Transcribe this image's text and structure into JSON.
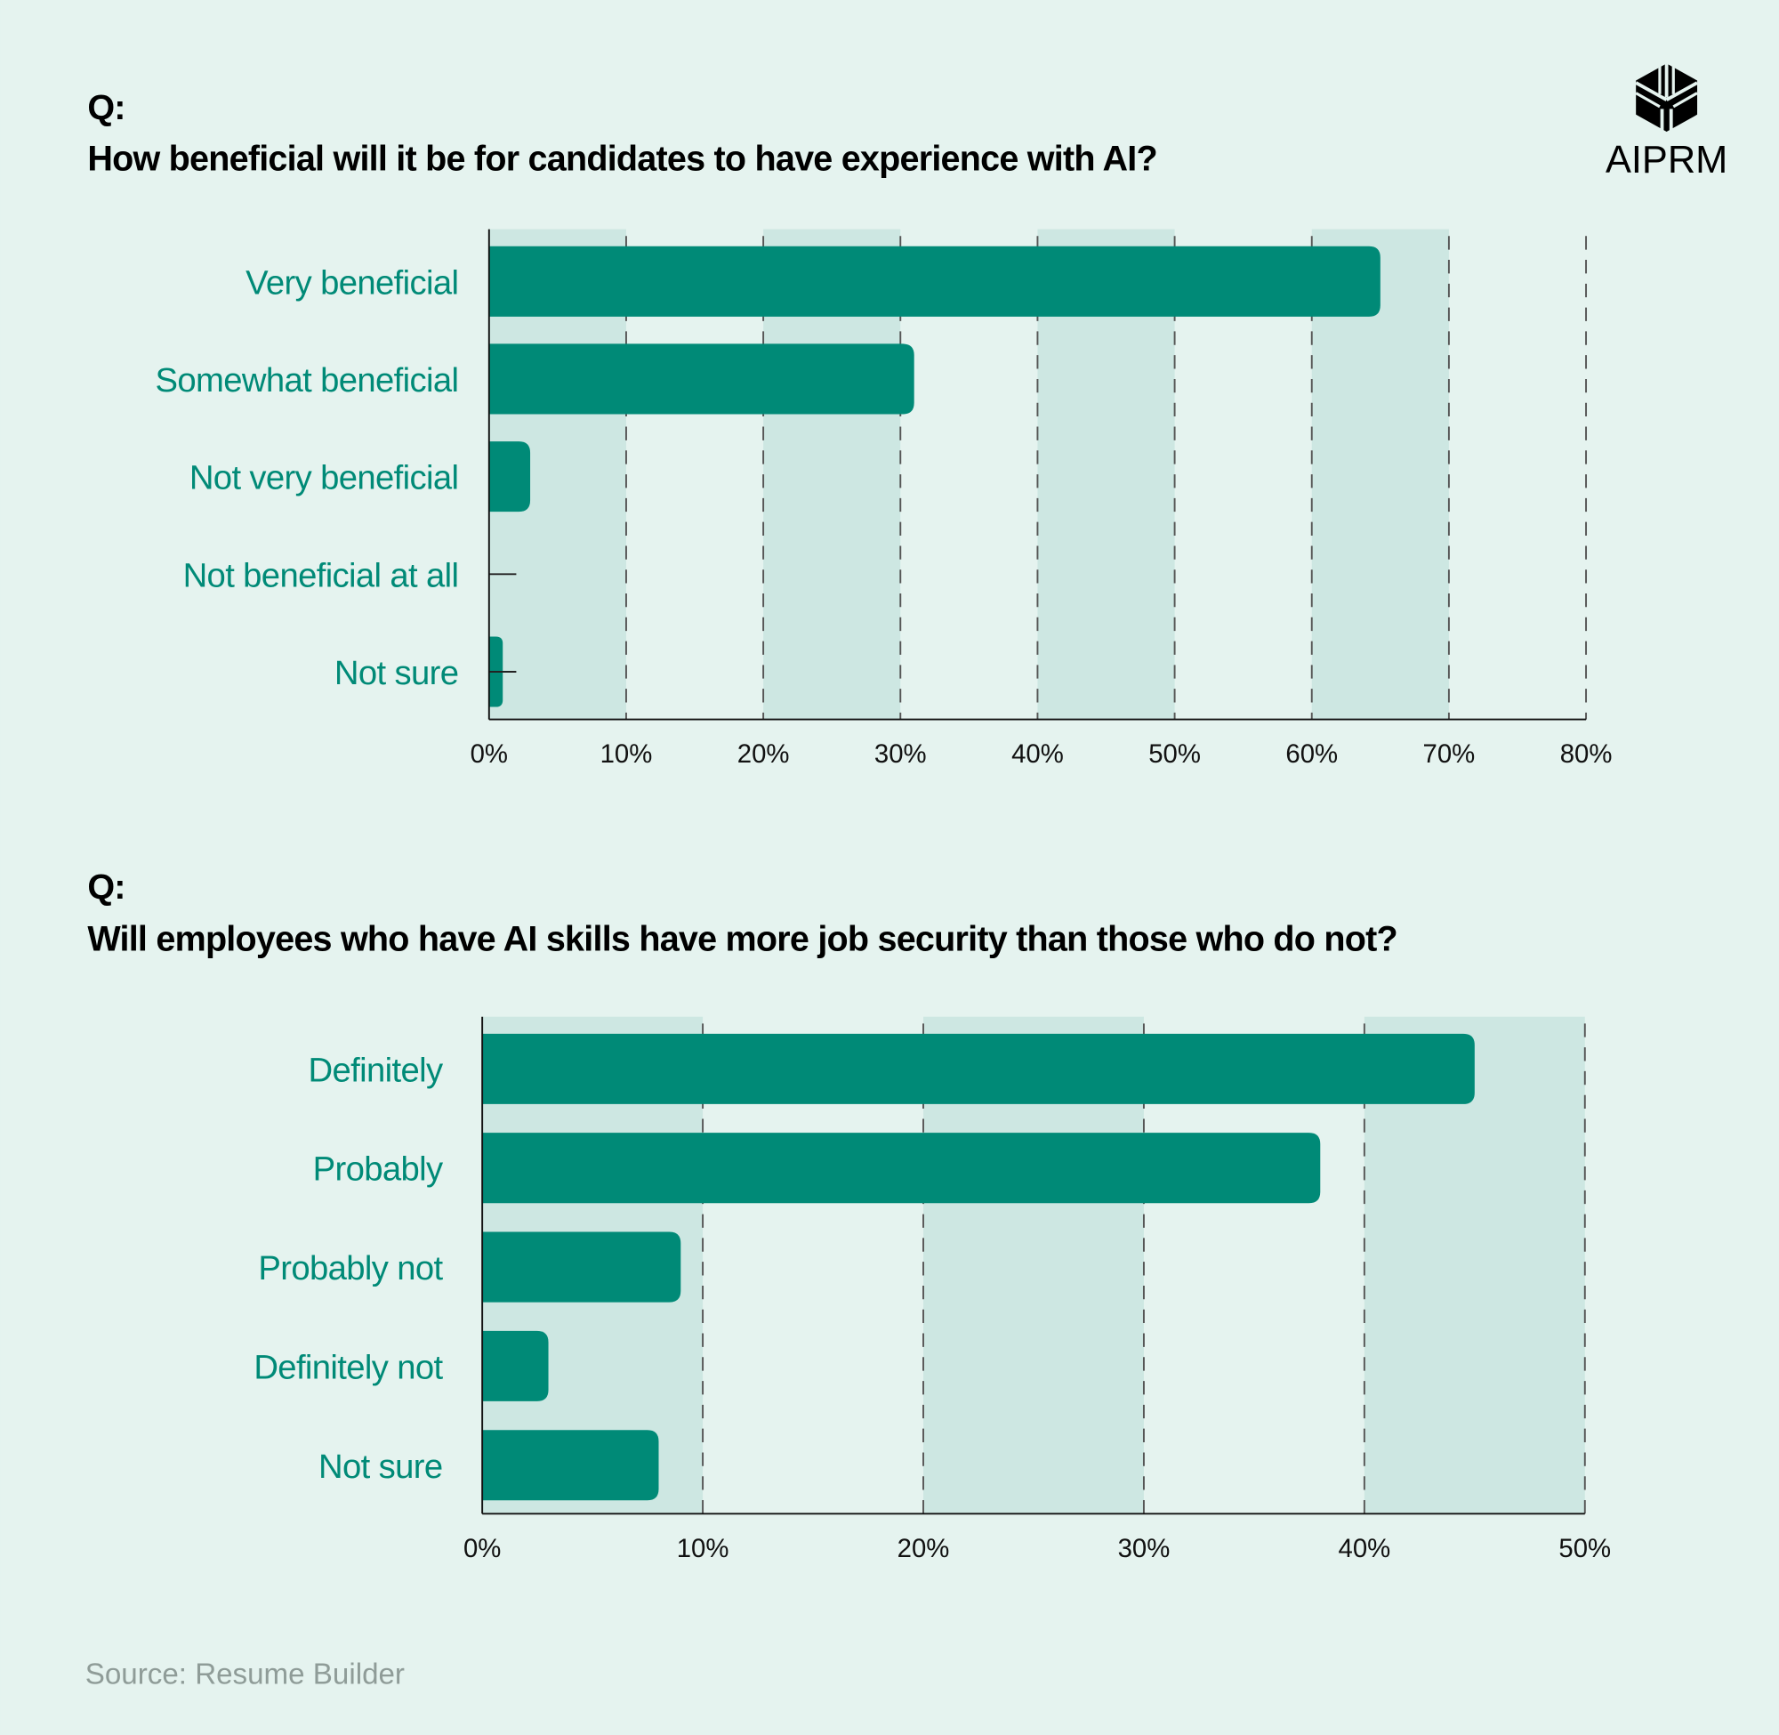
{
  "logo": {
    "text": "AIPRM"
  },
  "source": "Source: Resume Builder",
  "colors": {
    "background": "#e5f3ef",
    "band": "#cde7e2",
    "bar": "#008a77",
    "label": "#008a77"
  },
  "chart_data": [
    {
      "type": "bar",
      "orientation": "horizontal",
      "prefix": "Q:",
      "title": "How beneficial will it be for candidates to have experience with AI?",
      "categories": [
        "Very beneficial",
        "Somewhat beneficial",
        "Not very beneficial",
        "Not beneficial at all",
        "Not sure"
      ],
      "values": [
        65,
        31,
        3,
        0,
        1
      ],
      "xlim": [
        0,
        80
      ],
      "ticks": [
        "0%",
        "10%",
        "20%",
        "30%",
        "40%",
        "50%",
        "60%",
        "70%",
        "80%"
      ],
      "grid": "dashed vertical"
    },
    {
      "type": "bar",
      "orientation": "horizontal",
      "prefix": "Q:",
      "title": "Will employees who have AI skills have more job security than those who do not?",
      "categories": [
        "Definitely",
        "Probably",
        "Probably not",
        "Definitely not",
        "Not sure"
      ],
      "values": [
        45,
        38,
        9,
        3,
        8
      ],
      "xlim": [
        0,
        50
      ],
      "ticks": [
        "0%",
        "10%",
        "20%",
        "30%",
        "40%",
        "50%"
      ],
      "grid": "dashed vertical"
    }
  ]
}
